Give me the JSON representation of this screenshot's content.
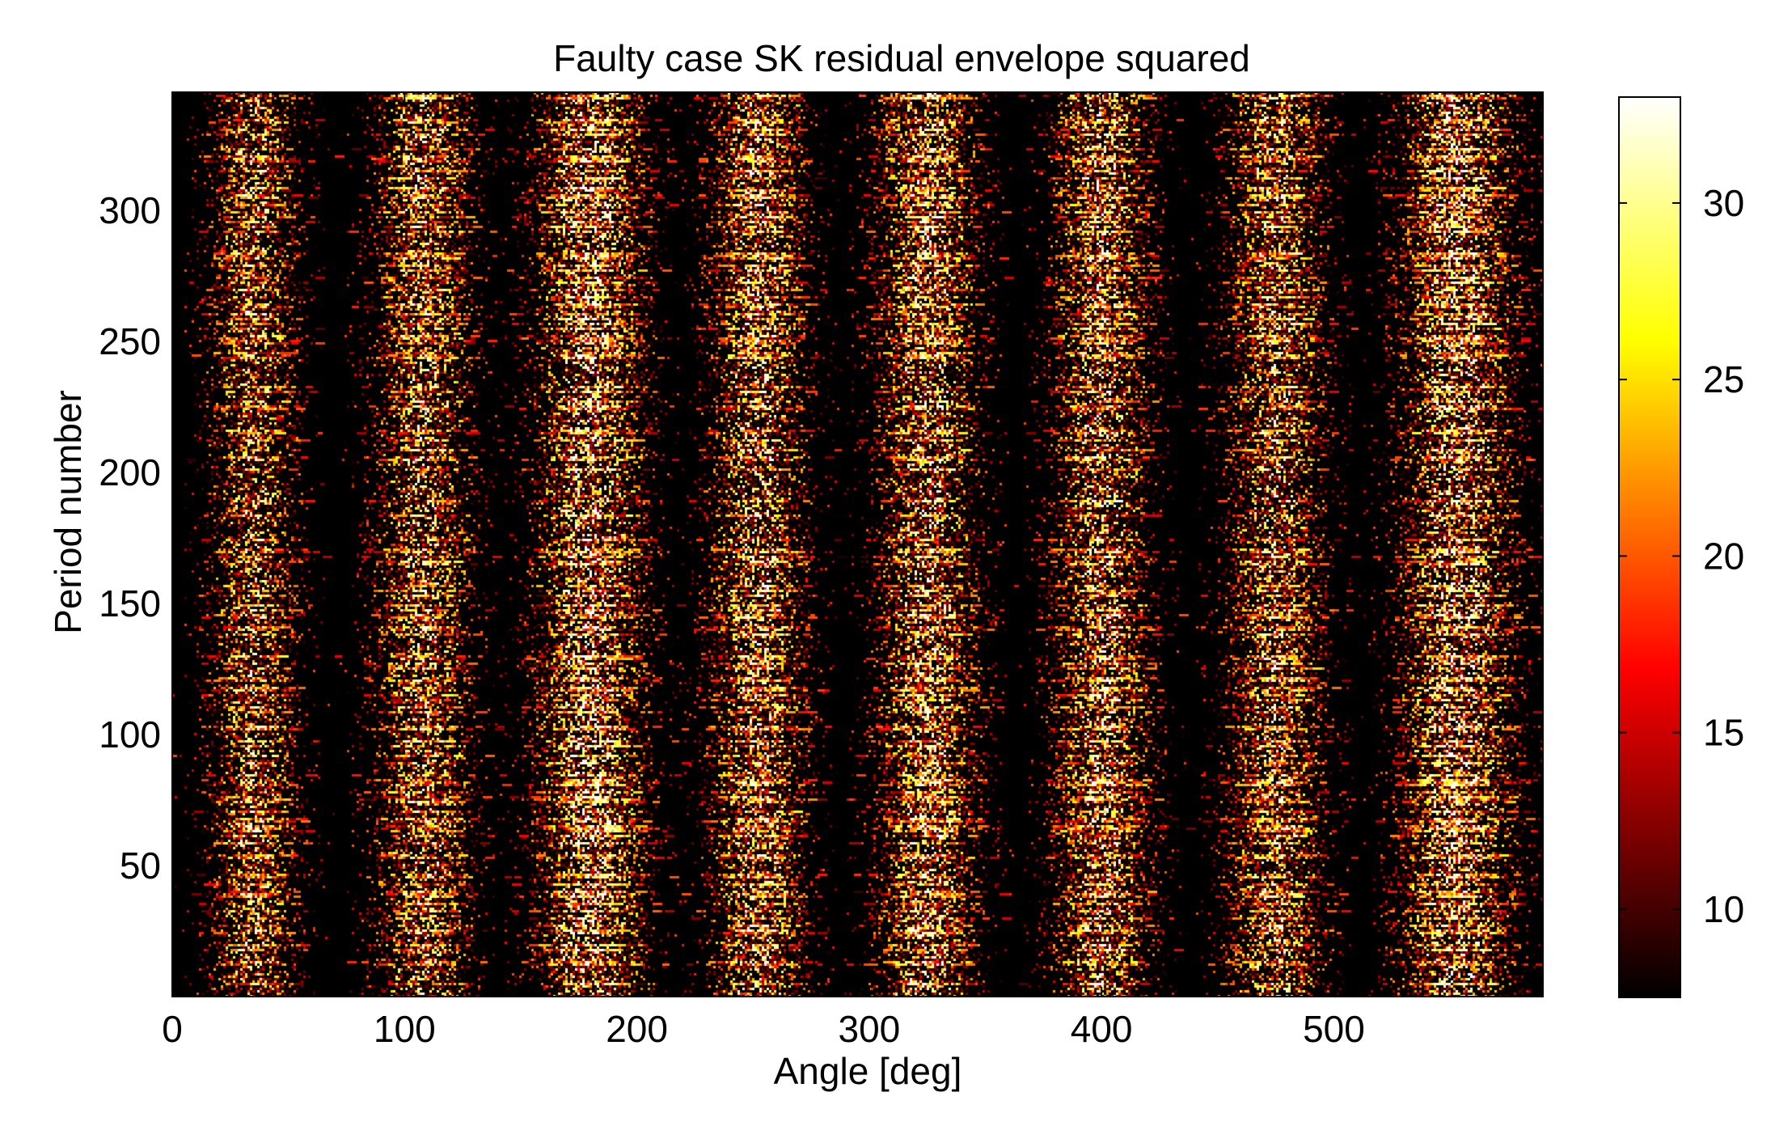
{
  "chart_data": {
    "type": "heatmap",
    "title": "Faulty case SK residual envelope squared",
    "xlabel": "Angle [deg]",
    "ylabel": "Period number",
    "xlim": [
      0,
      590
    ],
    "ylim": [
      0,
      345
    ],
    "x_ticks": [
      0,
      100,
      200,
      300,
      400,
      500
    ],
    "y_ticks": [
      50,
      100,
      150,
      200,
      250,
      300
    ],
    "colorbar": {
      "range": [
        7.5,
        33
      ],
      "ticks": [
        10,
        15,
        20,
        25,
        30
      ],
      "colormap": "hot"
    },
    "bands": [
      {
        "center_deg": 35,
        "halfwidth_deg": 20,
        "intensity": 0.8
      },
      {
        "center_deg": 108,
        "halfwidth_deg": 22,
        "intensity": 0.85
      },
      {
        "center_deg": 180,
        "halfwidth_deg": 25,
        "intensity": 1.0
      },
      {
        "center_deg": 252,
        "halfwidth_deg": 22,
        "intensity": 0.9
      },
      {
        "center_deg": 325,
        "halfwidth_deg": 23,
        "intensity": 0.92
      },
      {
        "center_deg": 400,
        "halfwidth_deg": 22,
        "intensity": 0.9
      },
      {
        "center_deg": 475,
        "halfwidth_deg": 22,
        "intensity": 0.85
      },
      {
        "center_deg": 553,
        "halfwidth_deg": 26,
        "intensity": 1.0
      }
    ],
    "background_value": 8,
    "peak_value": 33
  }
}
